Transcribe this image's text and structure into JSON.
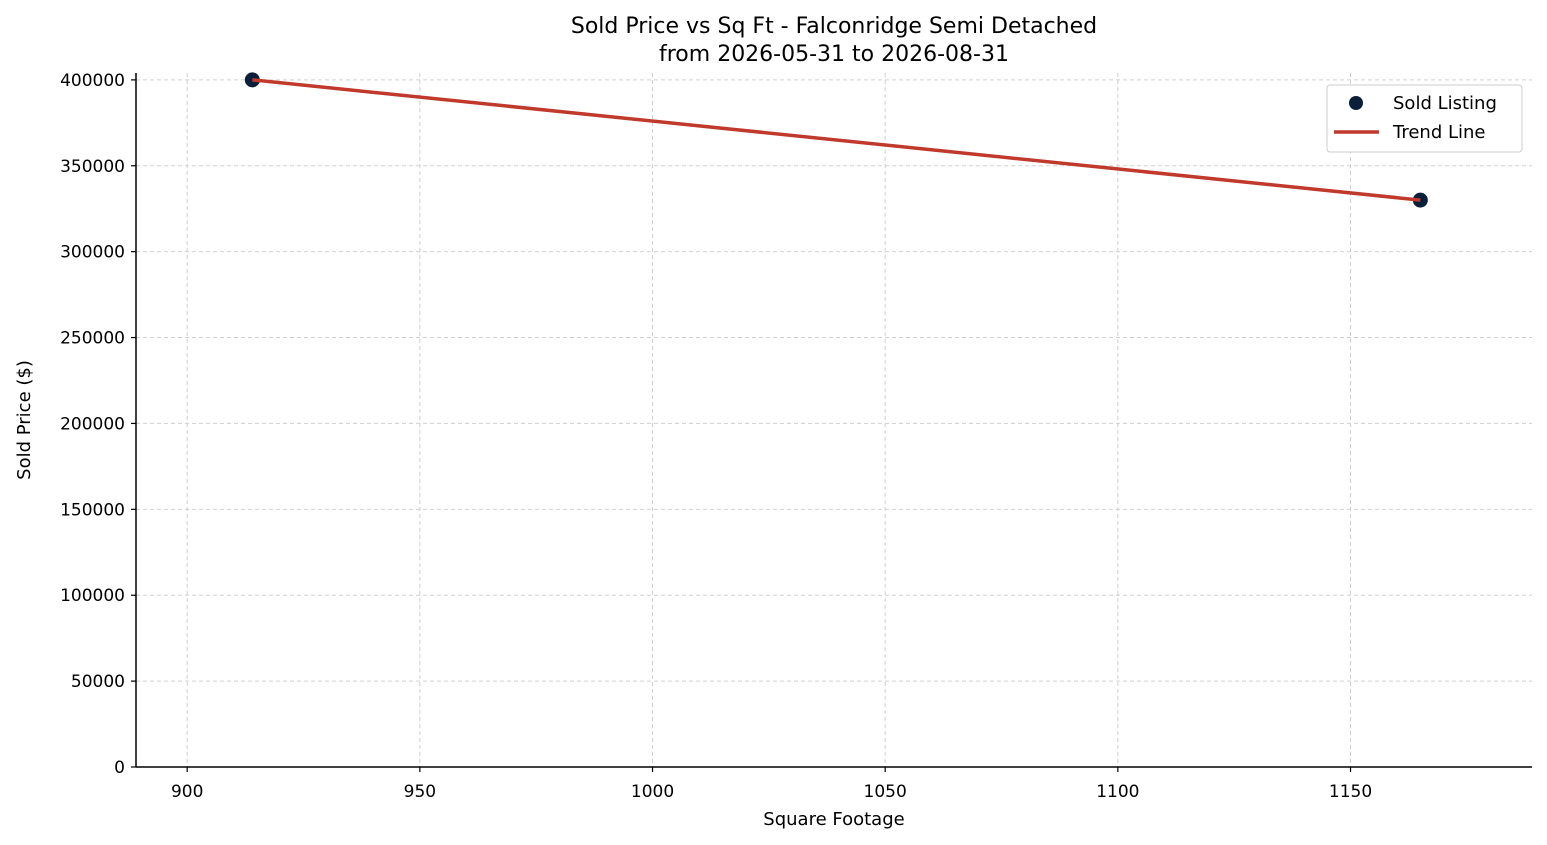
{
  "chart_data": {
    "type": "scatter",
    "title": "Sold Price vs Sq Ft - Falconridge Semi Detached",
    "subtitle": "from 2026-05-31 to 2026-08-31",
    "xlabel": "Square Footage",
    "ylabel": "Sold Price ($)",
    "xlim": [
      889,
      1189
    ],
    "ylim": [
      0,
      404000
    ],
    "xticks": [
      900,
      950,
      1000,
      1050,
      1100,
      1150
    ],
    "yticks": [
      0,
      50000,
      100000,
      150000,
      200000,
      250000,
      300000,
      350000,
      400000
    ],
    "grid": true,
    "legend_position": "top-right",
    "series": [
      {
        "name": "Sold Listing",
        "kind": "scatter",
        "color": "#0b1f3a",
        "points": [
          {
            "x": 914,
            "y": 400000
          },
          {
            "x": 1165,
            "y": 330000
          }
        ]
      },
      {
        "name": "Trend Line",
        "kind": "line",
        "color": "#c0392b",
        "points": [
          {
            "x": 914,
            "y": 400000
          },
          {
            "x": 1165,
            "y": 330000
          }
        ]
      }
    ]
  }
}
